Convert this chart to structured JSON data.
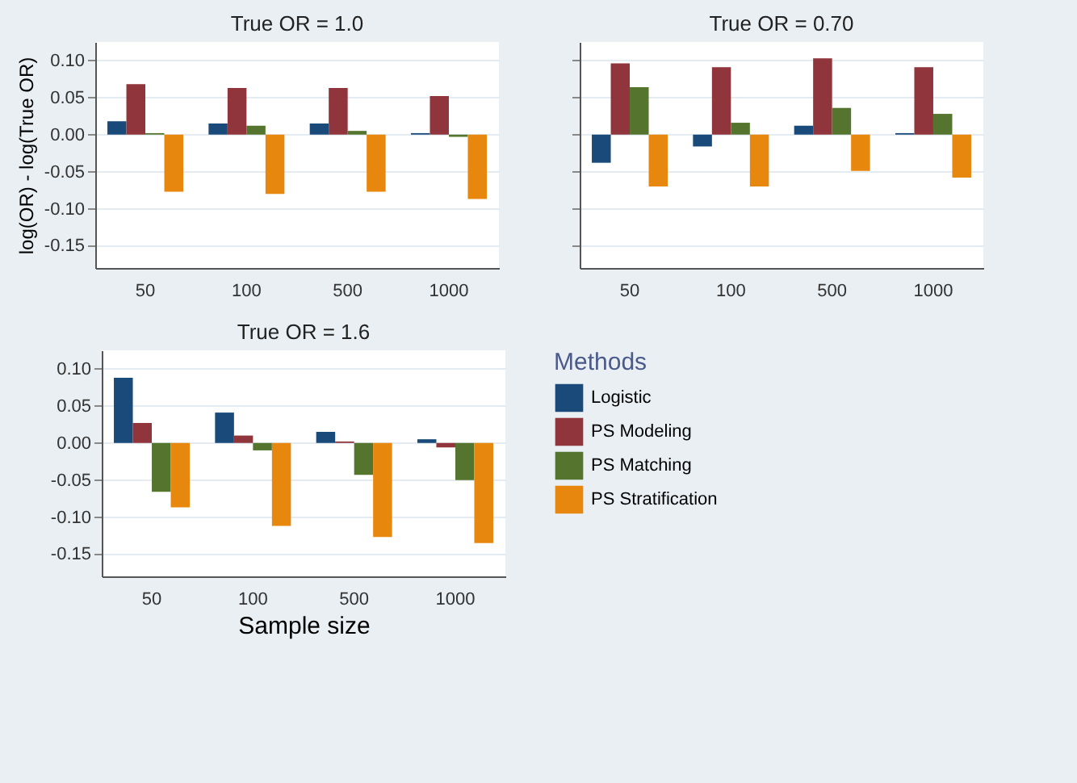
{
  "chart_data": [
    {
      "type": "bar",
      "title": "True OR = 1.0",
      "ylabel": "log(OR) - log(True OR)",
      "categories": [
        "50",
        "100",
        "500",
        "1000"
      ],
      "series": [
        {
          "color": "#1a4a7a",
          "values": [
            0.018,
            0.015,
            0.015,
            0.002
          ]
        },
        {
          "color": "#90353b",
          "values": [
            0.068,
            0.063,
            0.063,
            0.052
          ]
        },
        {
          "color": "#55752f",
          "values": [
            0.002,
            0.012,
            0.005,
            -0.003
          ]
        },
        {
          "color": "#e8870e",
          "values": [
            -0.077,
            -0.08,
            -0.077,
            -0.087
          ]
        }
      ],
      "ylim": [
        -0.18,
        0.125
      ],
      "yticks": [
        {
          "value": -0.15,
          "label": "-0.15"
        },
        {
          "value": -0.1,
          "label": "-0.10"
        },
        {
          "value": -0.05,
          "label": "-0.05"
        },
        {
          "value": 0,
          "label": "0.00"
        },
        {
          "value": 0.05,
          "label": "0.05"
        },
        {
          "value": 0.1,
          "label": "0.10"
        }
      ],
      "grid": "y"
    },
    {
      "type": "bar",
      "title": "True OR = 0.70",
      "categories": [
        "50",
        "100",
        "500",
        "1000"
      ],
      "series": [
        {
          "color": "#1a4a7a",
          "values": [
            -0.038,
            -0.016,
            0.012,
            0.002
          ]
        },
        {
          "color": "#90353b",
          "values": [
            0.096,
            0.091,
            0.103,
            0.091
          ]
        },
        {
          "color": "#55752f",
          "values": [
            0.064,
            0.016,
            0.036,
            0.028
          ]
        },
        {
          "color": "#e8870e",
          "values": [
            -0.07,
            -0.07,
            -0.049,
            -0.058
          ]
        }
      ],
      "ylim": [
        -0.18,
        0.125
      ],
      "yticks": [
        {
          "value": -0.15,
          "label": null
        },
        {
          "value": -0.1,
          "label": null
        },
        {
          "value": -0.05,
          "label": null
        },
        {
          "value": 0,
          "label": null
        },
        {
          "value": 0.05,
          "label": null
        },
        {
          "value": 0.1,
          "label": null
        }
      ],
      "grid": "y",
      "tick_labels": "x"
    },
    {
      "type": "bar",
      "title": "True OR = 1.6",
      "xlabel": "Sample size",
      "legend_title": "Methods",
      "legend": "right",
      "categories": [
        "50",
        "100",
        "500",
        "1000"
      ],
      "series": [
        {
          "name": "Logistic",
          "color": "#1a4a7a",
          "values": [
            0.088,
            0.041,
            0.015,
            0.005
          ]
        },
        {
          "name": "PS Modeling",
          "color": "#90353b",
          "values": [
            0.027,
            0.01,
            0.002,
            -0.006
          ]
        },
        {
          "name": "PS Matching",
          "color": "#55752f",
          "values": [
            -0.066,
            -0.01,
            -0.043,
            -0.05
          ]
        },
        {
          "name": "PS Stratification",
          "color": "#e8870e",
          "values": [
            -0.087,
            -0.112,
            -0.127,
            -0.135
          ]
        }
      ],
      "ylim": [
        -0.18,
        0.125
      ],
      "yticks": [
        {
          "value": -0.15,
          "label": "-0.15"
        },
        {
          "value": -0.1,
          "label": "-0.10"
        },
        {
          "value": -0.05,
          "label": "-0.05"
        },
        {
          "value": 0,
          "label": "0.00"
        },
        {
          "value": 0.05,
          "label": "0.05"
        },
        {
          "value": 0.1,
          "label": "0.10"
        }
      ],
      "grid": "y"
    }
  ]
}
